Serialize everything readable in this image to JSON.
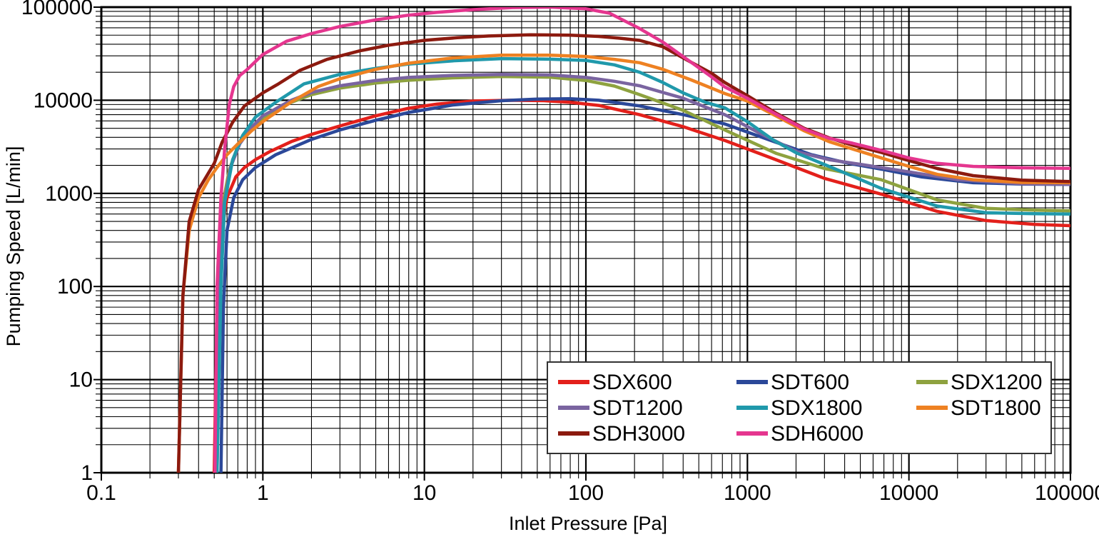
{
  "chart_data": {
    "type": "line",
    "title": "",
    "xlabel": "Inlet Pressure [Pa]",
    "ylabel": "Pumping Speed [L/min]",
    "x_scale": "log",
    "y_scale": "log",
    "xlim": [
      0.1,
      100000
    ],
    "ylim": [
      1,
      100000
    ],
    "x_ticks": [
      "0.1",
      "1",
      "10",
      "100",
      "1000",
      "10000",
      "100000"
    ],
    "y_ticks": [
      "1",
      "10",
      "100",
      "1000",
      "10000",
      "100000"
    ],
    "grid": "major and minor log gridlines, black, on",
    "legend_position": "inset lower-right, 3 columns, white box with dark border",
    "axis_color": "#000000",
    "series": [
      {
        "name": "SDX600",
        "color": "#E3201B",
        "points": [
          [
            0.5,
            1
          ],
          [
            0.52,
            60
          ],
          [
            0.55,
            350
          ],
          [
            0.6,
            900
          ],
          [
            0.68,
            1500
          ],
          [
            0.77,
            1900
          ],
          [
            0.9,
            2300
          ],
          [
            1.1,
            2800
          ],
          [
            1.5,
            3600
          ],
          [
            2,
            4300
          ],
          [
            3,
            5300
          ],
          [
            5,
            6800
          ],
          [
            8,
            8200
          ],
          [
            12,
            9100
          ],
          [
            20,
            9800
          ],
          [
            35,
            10000
          ],
          [
            55,
            9900
          ],
          [
            80,
            9500
          ],
          [
            120,
            8800
          ],
          [
            215,
            7000
          ],
          [
            400,
            5200
          ],
          [
            725,
            3700
          ],
          [
            1500,
            2300
          ],
          [
            3000,
            1450
          ],
          [
            6750,
            980
          ],
          [
            15000,
            640
          ],
          [
            30000,
            510
          ],
          [
            60000,
            465
          ],
          [
            100000,
            450
          ]
        ]
      },
      {
        "name": "SDT600",
        "color": "#2B4899",
        "points": [
          [
            0.55,
            1
          ],
          [
            0.57,
            60
          ],
          [
            0.6,
            400
          ],
          [
            0.66,
            900
          ],
          [
            0.75,
            1400
          ],
          [
            0.9,
            1900
          ],
          [
            1.2,
            2600
          ],
          [
            2,
            3800
          ],
          [
            3,
            4800
          ],
          [
            5,
            6100
          ],
          [
            8,
            7400
          ],
          [
            15,
            8900
          ],
          [
            30,
            9900
          ],
          [
            50,
            10300
          ],
          [
            80,
            10400
          ],
          [
            120,
            10000
          ],
          [
            215,
            8700
          ],
          [
            400,
            7000
          ],
          [
            725,
            5560
          ],
          [
            1460,
            3600
          ],
          [
            2500,
            2600
          ],
          [
            4250,
            2100
          ],
          [
            7000,
            1800
          ],
          [
            12000,
            1500
          ],
          [
            25000,
            1300
          ],
          [
            50000,
            1260
          ],
          [
            100000,
            1250
          ]
        ]
      },
      {
        "name": "SDX1200",
        "color": "#8EA23F",
        "points": [
          [
            0.51,
            1
          ],
          [
            0.53,
            80
          ],
          [
            0.56,
            700
          ],
          [
            0.62,
            1800
          ],
          [
            0.7,
            3200
          ],
          [
            0.8,
            4700
          ],
          [
            1,
            6500
          ],
          [
            1.5,
            9500
          ],
          [
            2,
            11500
          ],
          [
            3,
            13500
          ],
          [
            5,
            15300
          ],
          [
            8,
            16400
          ],
          [
            15,
            17400
          ],
          [
            30,
            18000
          ],
          [
            60,
            17700
          ],
          [
            100,
            16300
          ],
          [
            150,
            14200
          ],
          [
            215,
            11500
          ],
          [
            400,
            7800
          ],
          [
            725,
            4800
          ],
          [
            1500,
            2700
          ],
          [
            3000,
            1850
          ],
          [
            6750,
            1400
          ],
          [
            15000,
            850
          ],
          [
            30000,
            690
          ],
          [
            60000,
            660
          ],
          [
            100000,
            650
          ]
        ]
      },
      {
        "name": "SDT1200",
        "color": "#7A64A0",
        "points": [
          [
            0.52,
            1
          ],
          [
            0.54,
            80
          ],
          [
            0.57,
            700
          ],
          [
            0.63,
            1900
          ],
          [
            0.72,
            3400
          ],
          [
            0.85,
            5100
          ],
          [
            1,
            6800
          ],
          [
            1.5,
            10000
          ],
          [
            2,
            12100
          ],
          [
            3,
            14300
          ],
          [
            5,
            16300
          ],
          [
            8,
            17600
          ],
          [
            15,
            18500
          ],
          [
            30,
            18900
          ],
          [
            60,
            18700
          ],
          [
            100,
            17600
          ],
          [
            150,
            16000
          ],
          [
            215,
            14300
          ],
          [
            400,
            10500
          ],
          [
            725,
            7000
          ],
          [
            1200,
            4400
          ],
          [
            2030,
            2800
          ],
          [
            3200,
            2300
          ],
          [
            5000,
            2050
          ],
          [
            10000,
            1700
          ],
          [
            20000,
            1400
          ],
          [
            50000,
            1270
          ],
          [
            100000,
            1250
          ]
        ]
      },
      {
        "name": "SDX1800",
        "color": "#2099AB",
        "points": [
          [
            0.52,
            1
          ],
          [
            0.55,
            100
          ],
          [
            0.58,
            800
          ],
          [
            0.65,
            2300
          ],
          [
            0.75,
            4200
          ],
          [
            0.9,
            6600
          ],
          [
            1.2,
            9500
          ],
          [
            1.8,
            15000
          ],
          [
            3,
            19000
          ],
          [
            5,
            22000
          ],
          [
            8,
            24500
          ],
          [
            15,
            26500
          ],
          [
            30,
            28000
          ],
          [
            60,
            27600
          ],
          [
            100,
            26800
          ],
          [
            150,
            24000
          ],
          [
            215,
            20000
          ],
          [
            300,
            15500
          ],
          [
            400,
            12000
          ],
          [
            550,
            9500
          ],
          [
            725,
            8300
          ],
          [
            1000,
            5900
          ],
          [
            1460,
            3700
          ],
          [
            2030,
            2700
          ],
          [
            3200,
            1950
          ],
          [
            4470,
            1530
          ],
          [
            6750,
            1130
          ],
          [
            15000,
            730
          ],
          [
            30000,
            620
          ],
          [
            60000,
            605
          ],
          [
            100000,
            600
          ]
        ]
      },
      {
        "name": "SDT1800",
        "color": "#EE8122",
        "points": [
          [
            0.3,
            1
          ],
          [
            0.32,
            80
          ],
          [
            0.35,
            400
          ],
          [
            0.4,
            900
          ],
          [
            0.46,
            1400
          ],
          [
            0.52,
            1900
          ],
          [
            0.6,
            2600
          ],
          [
            0.7,
            3400
          ],
          [
            0.85,
            4700
          ],
          [
            1,
            5900
          ],
          [
            1.5,
            9600
          ],
          [
            2.2,
            14000
          ],
          [
            3,
            17000
          ],
          [
            5,
            21500
          ],
          [
            8,
            25000
          ],
          [
            15,
            28500
          ],
          [
            30,
            30500
          ],
          [
            60,
            30500
          ],
          [
            100,
            29500
          ],
          [
            150,
            27500
          ],
          [
            215,
            25300
          ],
          [
            300,
            21500
          ],
          [
            450,
            16500
          ],
          [
            725,
            11800
          ],
          [
            1000,
            9800
          ],
          [
            1500,
            6800
          ],
          [
            2250,
            4700
          ],
          [
            3200,
            3600
          ],
          [
            4470,
            3000
          ],
          [
            6750,
            2400
          ],
          [
            10000,
            1950
          ],
          [
            15000,
            1600
          ],
          [
            25000,
            1400
          ],
          [
            50000,
            1310
          ],
          [
            100000,
            1300
          ]
        ]
      },
      {
        "name": "SDH3000",
        "color": "#8C1A0F",
        "points": [
          [
            0.3,
            1
          ],
          [
            0.32,
            80
          ],
          [
            0.35,
            500
          ],
          [
            0.4,
            1100
          ],
          [
            0.5,
            2100
          ],
          [
            0.56,
            3550
          ],
          [
            0.65,
            5800
          ],
          [
            0.77,
            8700
          ],
          [
            1,
            12000
          ],
          [
            1.25,
            15000
          ],
          [
            1.7,
            21000
          ],
          [
            2.5,
            27500
          ],
          [
            4,
            34000
          ],
          [
            6,
            39000
          ],
          [
            10,
            44000
          ],
          [
            16,
            47000
          ],
          [
            25,
            49000
          ],
          [
            45,
            50500
          ],
          [
            80,
            50000
          ],
          [
            120,
            48500
          ],
          [
            160,
            46500
          ],
          [
            215,
            44000
          ],
          [
            300,
            37500
          ],
          [
            450,
            25500
          ],
          [
            600,
            19500
          ],
          [
            725,
            15500
          ],
          [
            1000,
            11200
          ],
          [
            1500,
            7300
          ],
          [
            2250,
            5000
          ],
          [
            3200,
            3950
          ],
          [
            4470,
            3300
          ],
          [
            6750,
            2750
          ],
          [
            10000,
            2250
          ],
          [
            15000,
            1850
          ],
          [
            25000,
            1550
          ],
          [
            50000,
            1390
          ],
          [
            100000,
            1340
          ]
        ]
      },
      {
        "name": "SDH6000",
        "color": "#E5368F",
        "points": [
          [
            0.505,
            1
          ],
          [
            0.52,
            100
          ],
          [
            0.55,
            900
          ],
          [
            0.58,
            3000
          ],
          [
            0.62,
            9000
          ],
          [
            0.66,
            14000
          ],
          [
            0.72,
            18500
          ],
          [
            0.79,
            21000
          ],
          [
            1,
            31000
          ],
          [
            1.4,
            43000
          ],
          [
            2,
            52000
          ],
          [
            3,
            62000
          ],
          [
            5,
            73000
          ],
          [
            8,
            82000
          ],
          [
            12,
            88000
          ],
          [
            20,
            94000
          ],
          [
            35,
            99000
          ],
          [
            60,
            100000
          ],
          [
            100,
            96000
          ],
          [
            140,
            86000
          ],
          [
            215,
            59000
          ],
          [
            300,
            42000
          ],
          [
            450,
            25500
          ],
          [
            600,
            17800
          ],
          [
            725,
            13900
          ],
          [
            1000,
            10500
          ],
          [
            1500,
            7100
          ],
          [
            2250,
            4900
          ],
          [
            3200,
            3900
          ],
          [
            4470,
            3460
          ],
          [
            6750,
            2900
          ],
          [
            10000,
            2400
          ],
          [
            15000,
            2100
          ],
          [
            25000,
            1950
          ],
          [
            50000,
            1880
          ],
          [
            100000,
            1860
          ]
        ]
      }
    ]
  }
}
